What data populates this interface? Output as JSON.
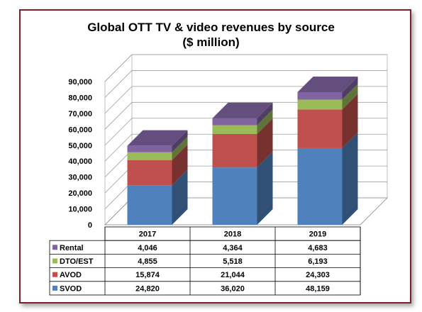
{
  "chart_data": {
    "type": "bar",
    "stacked": true,
    "three_d": true,
    "title": "Global OTT TV & video revenues by source",
    "subtitle": "($ million)",
    "categories": [
      "2017",
      "2018",
      "2019"
    ],
    "ylim": [
      0,
      90000
    ],
    "yticks": [
      "0",
      "10,000",
      "20,000",
      "30,000",
      "40,000",
      "50,000",
      "60,000",
      "70,000",
      "80,000",
      "90,000"
    ],
    "ytick_values": [
      0,
      10000,
      20000,
      30000,
      40000,
      50000,
      60000,
      70000,
      80000,
      90000
    ],
    "grid": true,
    "legend": "data-table-left",
    "series": [
      {
        "name": "SVOD",
        "color": "#4f81bd",
        "values": [
          24820,
          36020,
          48159
        ],
        "labels": [
          "24,820",
          "36,020",
          "48,159"
        ]
      },
      {
        "name": "AVOD",
        "color": "#c0504d",
        "values": [
          15874,
          21044,
          24303
        ],
        "labels": [
          "15,874",
          "21,044",
          "24,303"
        ]
      },
      {
        "name": "DTO/EST",
        "color": "#9bbb59",
        "values": [
          4855,
          5518,
          6193
        ],
        "labels": [
          "4,855",
          "5,518",
          "6,193"
        ]
      },
      {
        "name": "Rental",
        "color": "#8064a2",
        "values": [
          4046,
          4364,
          4683
        ],
        "labels": [
          "4,046",
          "4,364",
          "4,683"
        ]
      }
    ],
    "table_row_order": [
      "Rental",
      "DTO/EST",
      "AVOD",
      "SVOD"
    ]
  }
}
